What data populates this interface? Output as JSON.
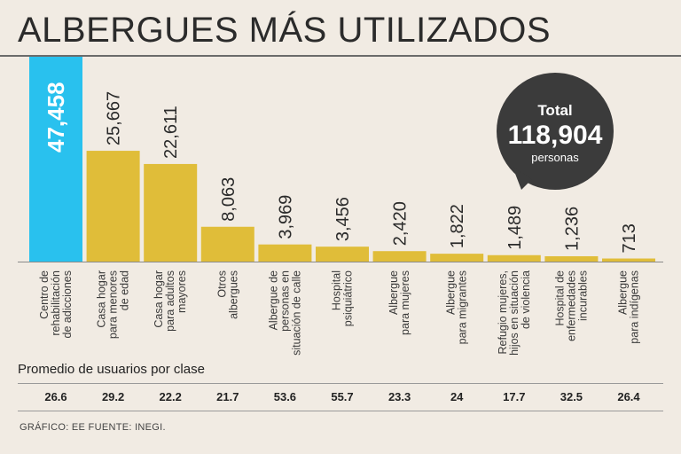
{
  "title": "ALBERGUES MÁS UTILIZADOS",
  "chart_data": {
    "type": "bar",
    "title": "ALBERGUES MÁS UTILIZADOS",
    "categories": [
      [
        "Centro de",
        "rehabilitación",
        "de adicciones"
      ],
      [
        "Casa hogar",
        "para menores",
        "de edad"
      ],
      [
        "Casa hogar",
        "para adultos",
        "mayores"
      ],
      [
        "Otros",
        "albergues"
      ],
      [
        "Albergue de",
        "personas en",
        "situación de calle"
      ],
      [
        "Hospital",
        "psiquiátrico"
      ],
      [
        "Albergue",
        "para mujeres"
      ],
      [
        "Albergue",
        "para migrantes"
      ],
      [
        "Refugio mujeres,",
        "hijos en situación",
        "de violencia"
      ],
      [
        "Hospital de",
        "enfermedades",
        "incurables"
      ],
      [
        "Albergue",
        "para indígenas"
      ]
    ],
    "values": [
      47458,
      25667,
      22611,
      8063,
      3969,
      3456,
      2420,
      1822,
      1489,
      1236,
      713
    ],
    "value_labels": [
      "47,458",
      "25,667",
      "22,611",
      "8,063",
      "3,969",
      "3,456",
      "2,420",
      "1,822",
      "1,489",
      "1,236",
      "713"
    ],
    "ylim": [
      0,
      47458
    ],
    "highlight_index": 0,
    "colors": {
      "highlight": "#29c1ee",
      "bar": "#e0bd39",
      "bubble": "#3b3b3b"
    }
  },
  "total": {
    "label": "Total",
    "value": "118,904",
    "unit": "personas"
  },
  "averages": {
    "label": "Promedio de usuarios por clase",
    "values": [
      "26.6",
      "29.2",
      "22.2",
      "21.7",
      "53.6",
      "55.7",
      "23.3",
      "24",
      "17.7",
      "32.5",
      "26.4"
    ]
  },
  "source": "GRÁFICO: EE  FUENTE: INEGI."
}
